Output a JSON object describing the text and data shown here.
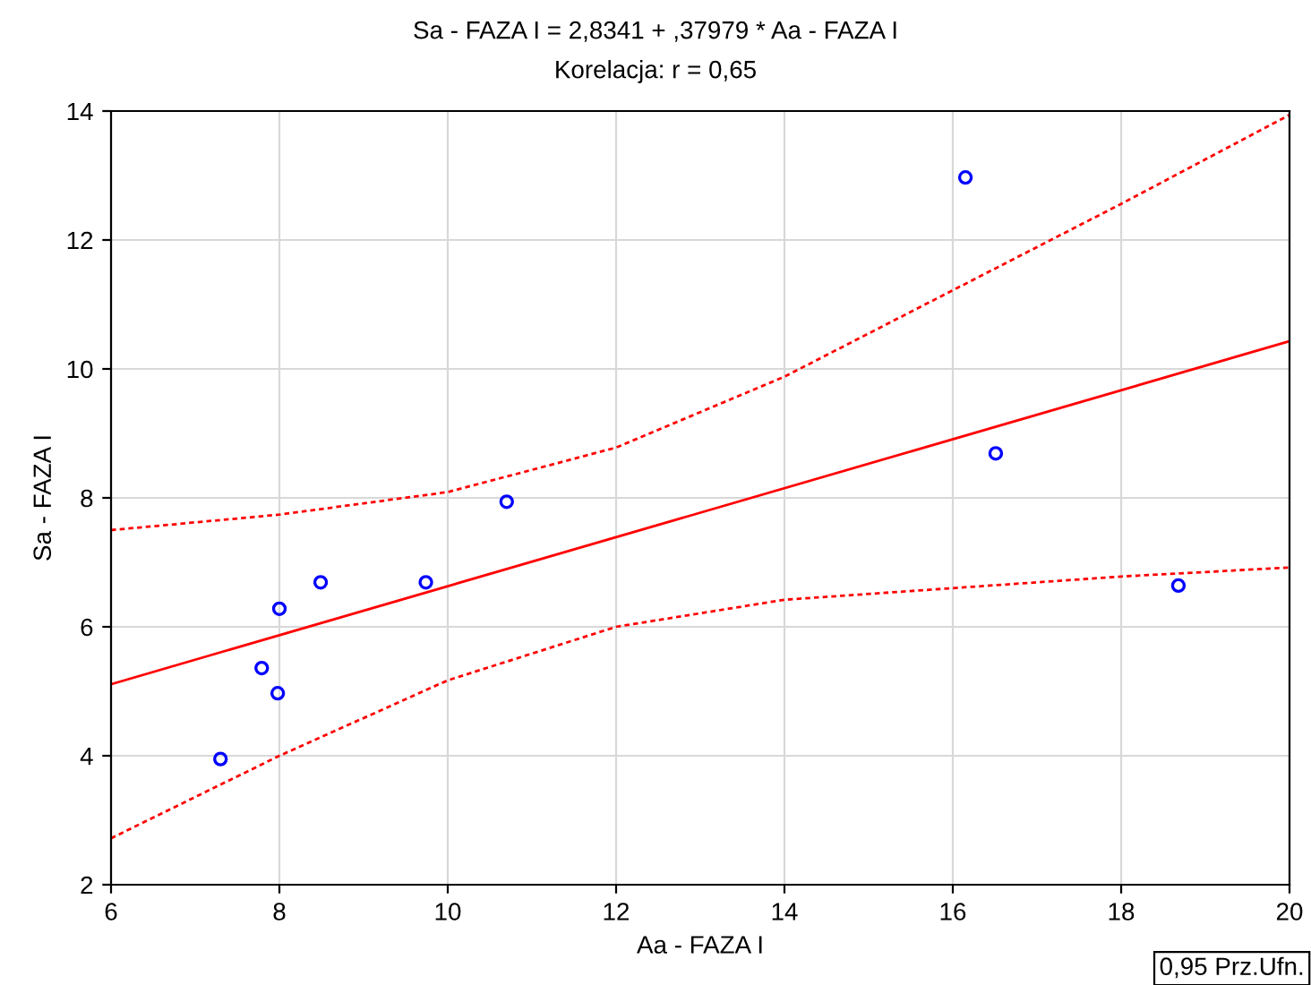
{
  "chart_data": {
    "type": "scatter",
    "title": "Sa - FAZA I = 2,8341 + ,37979 * Aa - FAZA I",
    "subtitle": "Korelacja: r = 0,65",
    "xlabel": "Aa - FAZA I",
    "ylabel": "Sa - FAZA I",
    "xlim": [
      6,
      20
    ],
    "ylim": [
      2,
      14
    ],
    "xticks": [
      6,
      8,
      10,
      12,
      14,
      16,
      18,
      20
    ],
    "yticks": [
      2,
      4,
      6,
      8,
      10,
      12,
      14
    ],
    "grid": true,
    "series": [
      {
        "color": "#0000ff",
        "marker": "circle",
        "x": [
          7.3,
          7.79,
          7.98,
          8.0,
          8.49,
          9.74,
          10.7,
          16.15,
          16.51,
          18.68
        ],
        "values": [
          3.95,
          5.36,
          4.97,
          6.28,
          6.69,
          6.69,
          7.94,
          12.97,
          8.69,
          6.64
        ]
      },
      {
        "type": "line",
        "color": "#ff0000",
        "line_style": "solid",
        "x": [
          6,
          20
        ],
        "values": [
          5.11,
          10.43
        ]
      },
      {
        "type": "line",
        "color": "#ff0000",
        "line_style": "dotted",
        "x": [
          6,
          8,
          10,
          12,
          14,
          16,
          18,
          20
        ],
        "values": [
          7.5,
          7.74,
          8.09,
          8.78,
          9.88,
          11.22,
          12.56,
          13.94
        ]
      },
      {
        "type": "line",
        "color": "#ff0000",
        "line_style": "dotted",
        "x": [
          6,
          8,
          10,
          12,
          14,
          16,
          18,
          20
        ],
        "values": [
          2.72,
          4.0,
          5.17,
          6.0,
          6.42,
          6.6,
          6.78,
          6.92
        ]
      }
    ],
    "annotations": [
      "0,95 Prz.Ufn."
    ]
  }
}
